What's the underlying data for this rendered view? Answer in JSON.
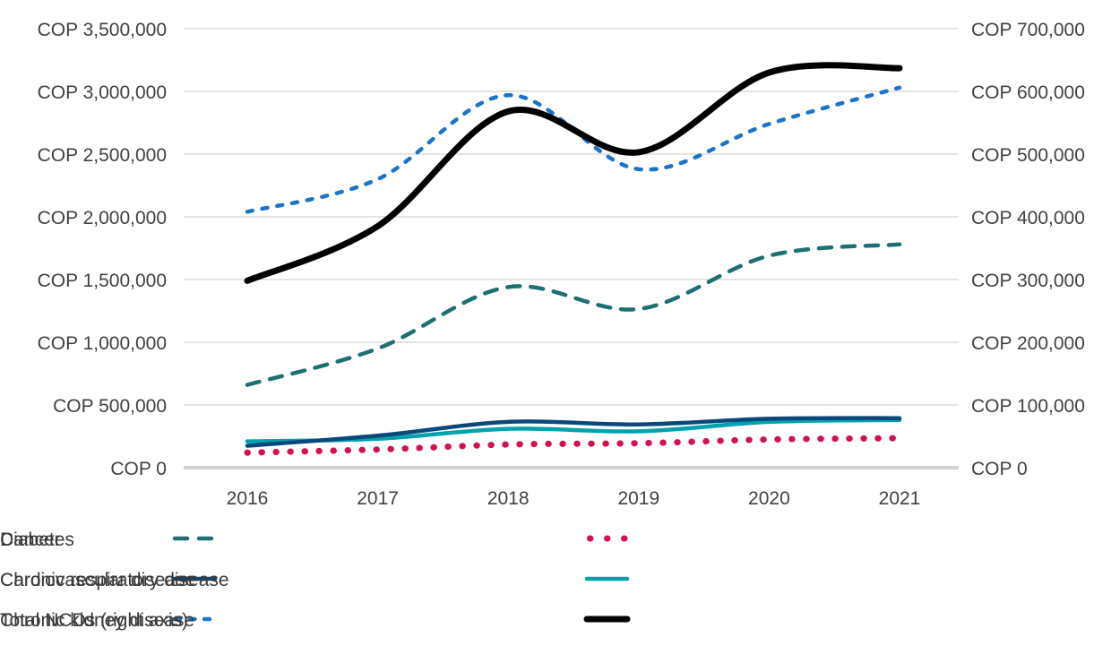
{
  "chart_data": {
    "type": "line",
    "title": "",
    "currency": "COP",
    "grid": "horizontal",
    "x_labels": [
      "2016",
      "2017",
      "2018",
      "2019",
      "2020",
      "2021"
    ],
    "left_axis": {
      "min": 0,
      "max": 3500000,
      "step": 500000,
      "ticks": [
        "COP 3,500,000",
        "COP 3,000,000",
        "COP 2,500,000",
        "COP 2,000,000",
        "COP 1,500,000",
        "COP 1,000,000",
        "COP 500,000",
        "COP 0"
      ]
    },
    "right_axis": {
      "min": 0,
      "max": 700000,
      "step": 100000,
      "ticks": [
        "COP 700,000",
        "COP 600,000",
        "COP 500,000",
        "COP 400,000",
        "COP 300,000",
        "COP 200,000",
        "COP 100,000",
        "COP 0"
      ]
    },
    "series": [
      {
        "name": "Cancer",
        "axis": "left",
        "style": "dashed-long",
        "color": "#1E6F74",
        "values": [
          660000,
          950000,
          1440000,
          1265000,
          1690000,
          1780000
        ]
      },
      {
        "name": "Diabetes",
        "axis": "left",
        "style": "dotted",
        "color": "#D3114D",
        "values": [
          120000,
          145000,
          185000,
          195000,
          225000,
          235000
        ]
      },
      {
        "name": "Cardiovascular disease",
        "axis": "left",
        "style": "solid",
        "color": "#0A487A",
        "values": [
          175000,
          255000,
          365000,
          345000,
          390000,
          395000
        ]
      },
      {
        "name": "Chronic respiratory disease",
        "axis": "left",
        "style": "solid",
        "color": "#00A1AD",
        "values": [
          210000,
          230000,
          310000,
          290000,
          365000,
          380000
        ]
      },
      {
        "name": "Chronic kidney disease",
        "axis": "left",
        "style": "dashed",
        "color": "#1B74C8",
        "values": [
          2040000,
          2300000,
          2970000,
          2380000,
          2740000,
          3030000
        ]
      },
      {
        "name": "Total NCDs (right axis)",
        "axis": "right",
        "style": "solid-thick",
        "color": "#000000",
        "values": [
          298000,
          385000,
          568000,
          503000,
          630000,
          637000
        ]
      }
    ],
    "legend": {
      "position": "bottom",
      "rows": [
        [
          "Cancer",
          "Diabetes"
        ],
        [
          "Cardiovascular disease",
          "Chronic respiratory disease"
        ],
        [
          "Chronic kidney disease",
          "Total NCDs (right axis)"
        ]
      ]
    }
  },
  "colors": {
    "background": "#ffffff",
    "gridline": "#dcdcdc",
    "zero_line": "#d2d2d2",
    "axis_text": "#414141",
    "legend_text": "#3a3a3a"
  }
}
